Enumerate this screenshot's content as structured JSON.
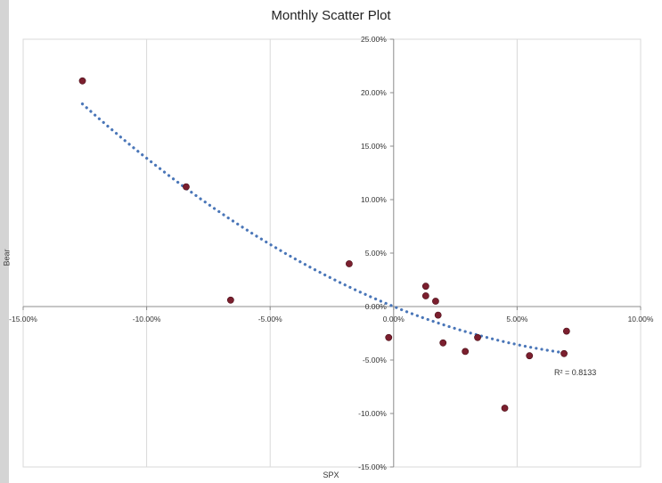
{
  "chart_data": {
    "type": "scatter",
    "title": "Monthly Scatter Plot",
    "xlabel": "SPX",
    "ylabel": "Bear",
    "xlim": [
      -15,
      10
    ],
    "ylim": [
      -15,
      25
    ],
    "x_ticks": [
      -15,
      -10,
      -5,
      0,
      5,
      10
    ],
    "x_tick_labels": [
      "-15.00%",
      "-10.00%",
      "-5.00%",
      "0.00%",
      "5.00%",
      "10.00%"
    ],
    "y_ticks": [
      25,
      20,
      15,
      10,
      5,
      0,
      -5,
      -10,
      -15
    ],
    "y_tick_labels": [
      "25.00%",
      "20.00%",
      "15.00%",
      "10.00%",
      "5.00%",
      "0.00%",
      "-5.00%",
      "-10.00%",
      "-15.00%"
    ],
    "grid": "vertical",
    "points": [
      {
        "x": -12.6,
        "y": 21.1
      },
      {
        "x": -8.4,
        "y": 11.2
      },
      {
        "x": -6.6,
        "y": 0.6
      },
      {
        "x": -1.8,
        "y": 4.0
      },
      {
        "x": -0.2,
        "y": -2.9
      },
      {
        "x": 1.3,
        "y": 1.9
      },
      {
        "x": 1.3,
        "y": 1.0
      },
      {
        "x": 1.7,
        "y": 0.5
      },
      {
        "x": 1.8,
        "y": -0.8
      },
      {
        "x": 2.0,
        "y": -3.4
      },
      {
        "x": 2.9,
        "y": -4.2
      },
      {
        "x": 3.4,
        "y": -2.9
      },
      {
        "x": 4.5,
        "y": -9.5
      },
      {
        "x": 5.5,
        "y": -4.6
      },
      {
        "x": 6.9,
        "y": -4.4
      },
      {
        "x": 7.0,
        "y": -2.3
      }
    ],
    "trendline": {
      "type": "polynomial",
      "x_range": [
        -12.6,
        7.0
      ],
      "samples": [
        {
          "x": -12.6,
          "y": 18.9
        },
        {
          "x": -8.5,
          "y": 11.3
        },
        {
          "x": -5.0,
          "y": 5.8
        },
        {
          "x": 0.0,
          "y": 0.0
        },
        {
          "x": 3.5,
          "y": -2.8
        },
        {
          "x": 7.0,
          "y": -4.3
        }
      ],
      "r_squared_label": "R² = 0.8133"
    },
    "colors": {
      "points": "#7b1f2e",
      "trendline": "#4a76b8",
      "grid": "#d9d9d9",
      "axis": "#8c8c8c"
    }
  }
}
